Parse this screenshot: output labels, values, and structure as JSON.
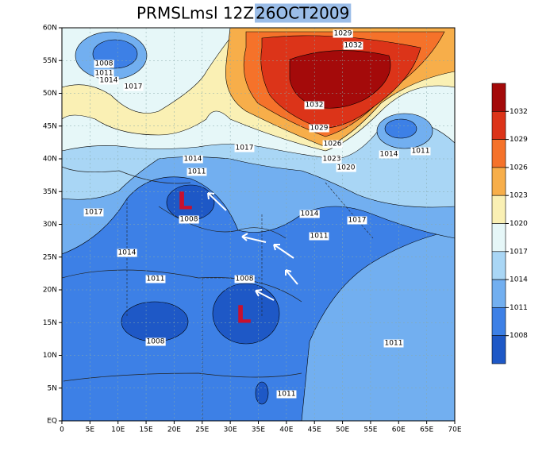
{
  "title": {
    "main": "PRMSLmsl 12Z",
    "date": "26OCT2009"
  },
  "x_axis": {
    "labels": [
      "0",
      "5E",
      "10E",
      "15E",
      "20E",
      "25E",
      "30E",
      "35E",
      "40E",
      "45E",
      "50E",
      "55E",
      "60E",
      "65E",
      "70E"
    ]
  },
  "y_axis": {
    "labels": [
      "EQ",
      "5N",
      "10N",
      "15N",
      "20N",
      "25N",
      "30N",
      "35N",
      "40N",
      "45N",
      "50N",
      "55N",
      "60N"
    ]
  },
  "colorbar": {
    "levels": [
      1032,
      1029,
      1026,
      1023,
      1020,
      1017,
      1014,
      1011,
      1008
    ],
    "colors": [
      "#a40a0a",
      "#dc3419",
      "#f5722a",
      "#f7ae4a",
      "#faf0b4",
      "#e6f7f8",
      "#a9d6f5",
      "#72aff0",
      "#3d80e6",
      "#1e58c6"
    ]
  },
  "contour_labels": [
    "1029",
    "1032",
    "1008",
    "1011",
    "1014",
    "1017",
    "1032",
    "1029",
    "1026",
    "1023",
    "1020",
    "1017",
    "1014",
    "1011",
    "1014",
    "1011",
    "1017",
    "1008",
    "1014",
    "1017",
    "1011",
    "1014",
    "1011",
    "1008",
    "1008",
    "1011",
    "1011"
  ],
  "low_markers": [
    "L",
    "L"
  ]
}
